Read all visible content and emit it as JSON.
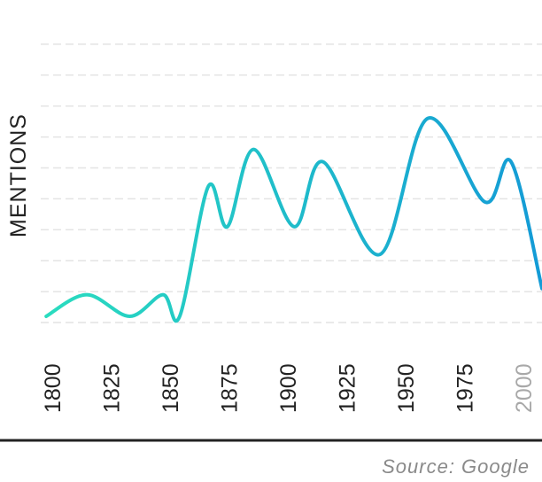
{
  "chart_data": {
    "type": "line",
    "title": "",
    "xlabel": "",
    "ylabel": "MENTIONS",
    "x_ticks": [
      "1800",
      "1825",
      "1850",
      "1875",
      "1900",
      "1925",
      "1950",
      "1975",
      "2000"
    ],
    "faded_ticks": [
      "2000"
    ],
    "xlim": [
      1791,
      2008
    ],
    "ylim": [
      0,
      9
    ],
    "grid": true,
    "y_gridlines": [
      1,
      2,
      3,
      4,
      5,
      6,
      7,
      8,
      9
    ],
    "legend": "none",
    "colors": {
      "start": "#2adcbf",
      "end": "#149bd6",
      "grid": "#e4e4e4",
      "axis": "#222222"
    },
    "series": [
      {
        "x": [
          1800,
          1817,
          1835,
          1849,
          1856,
          1868,
          1876,
          1887,
          1904,
          1916,
          1940,
          1960,
          1984,
          1995,
          2008
        ],
        "y": [
          0.2,
          0.9,
          0.2,
          0.9,
          0.2,
          4.4,
          3.1,
          5.6,
          3.1,
          5.2,
          2.2,
          6.6,
          3.9,
          5.2,
          1.1
        ]
      }
    ]
  },
  "source": "Source: Google"
}
